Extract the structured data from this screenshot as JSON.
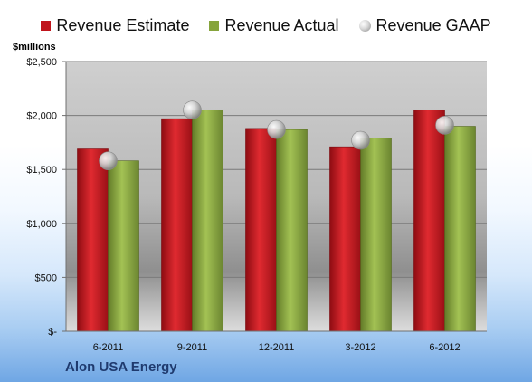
{
  "company": "Alon USA Energy",
  "unit_label": "$millions",
  "chart_data": {
    "type": "bar",
    "categories": [
      "6-2011",
      "9-2011",
      "12-2011",
      "3-2012",
      "6-2012"
    ],
    "series": [
      {
        "name": "Revenue Estimate",
        "kind": "bar",
        "color": "#c0141c",
        "values": [
          1690,
          1970,
          1880,
          1710,
          2050
        ]
      },
      {
        "name": "Revenue Actual",
        "kind": "bar",
        "color": "#86a43c",
        "values": [
          1580,
          2050,
          1870,
          1790,
          1900
        ]
      },
      {
        "name": "Revenue GAAP",
        "kind": "marker",
        "color": "#b0b0b0",
        "values": [
          1580,
          2050,
          1870,
          1770,
          1910
        ]
      }
    ],
    "ylim": [
      0,
      2500
    ],
    "yticks": [
      0,
      500,
      1000,
      1500,
      2000,
      2500
    ],
    "ytick_labels": [
      "$-",
      "$500",
      "$1,000",
      "$1,500",
      "$2,000",
      "$2,500"
    ],
    "grid": true,
    "legend_position": "top"
  }
}
